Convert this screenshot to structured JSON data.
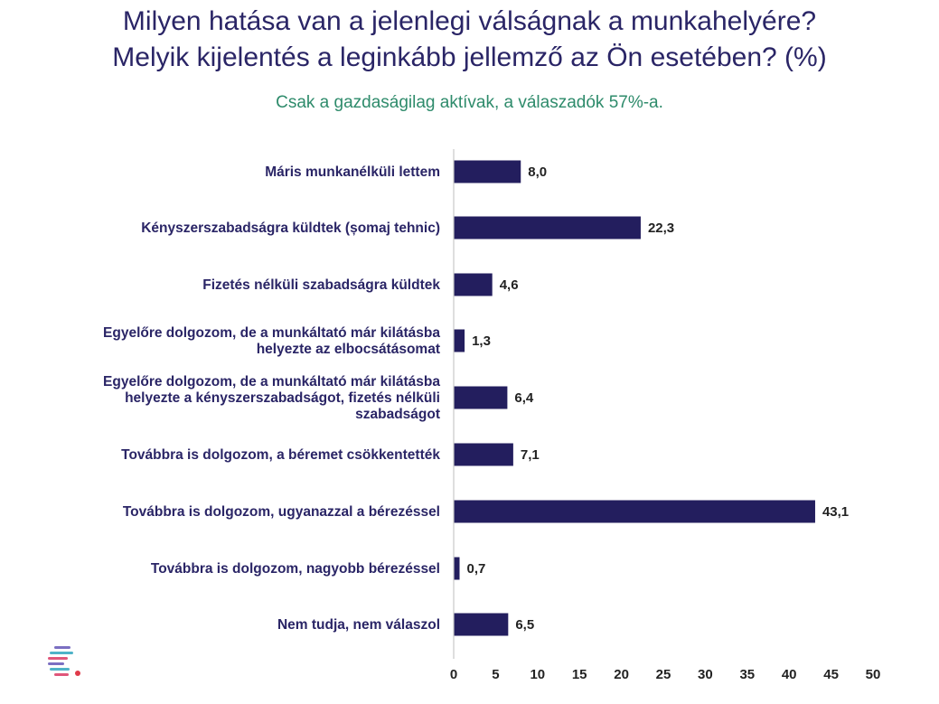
{
  "header": {
    "title_line1": "Milyen hatása van a jelenlegi válságnak a munkahelyére?",
    "title_line2": "Melyik kijelentés a leginkább jellemző az Ön esetében? (%)",
    "subtitle": "Csak a gazdaságilag aktívak, a válaszadók 57%-a."
  },
  "colors": {
    "bar": "#231e5e",
    "title": "#2a2566",
    "subtitle": "#2e8b6b"
  },
  "chart_data": {
    "type": "bar",
    "orientation": "horizontal",
    "title": "Milyen hatása van a jelenlegi válságnak a munkahelyére? Melyik kijelentés a leginkább jellemző az Ön esetében? (%)",
    "subtitle": "Csak a gazdaságilag aktívak, a válaszadók 57%-a.",
    "categories": [
      "Máris munkanélküli lettem",
      "Kényszerszabadságra küldtek (șomaj tehnic)",
      "Fizetés nélküli szabadságra küldtek",
      "Egyelőre dolgozom, de a munkáltató már kilátásba helyezte az elbocsátásomat",
      "Egyelőre dolgozom, de a munkáltató már kilátásba helyezte a kényszerszabadságot, fizetés nélküli szabadságot",
      "Továbbra is dolgozom, a béremet csökkentették",
      "Továbbra is dolgozom, ugyanazzal a bérezéssel",
      "Továbbra is dolgozom, nagyobb bérezéssel",
      "Nem tudja, nem válaszol"
    ],
    "category_lines": [
      [
        "Máris munkanélküli lettem"
      ],
      [
        "Kényszerszabadságra küldtek (șomaj tehnic)"
      ],
      [
        "Fizetés nélküli szabadságra küldtek"
      ],
      [
        "Egyelőre dolgozom, de a munkáltató már kilátásba",
        "helyezte az elbocsátásomat"
      ],
      [
        "Egyelőre dolgozom, de a munkáltató már kilátásba",
        "helyezte a kényszerszabadságot, fizetés nélküli",
        "szabadságot"
      ],
      [
        "Továbbra is dolgozom, a béremet csökkentették"
      ],
      [
        "Továbbra is dolgozom, ugyanazzal a bérezéssel"
      ],
      [
        "Továbbra is dolgozom, nagyobb bérezéssel"
      ],
      [
        "Nem tudja, nem válaszol"
      ]
    ],
    "values": [
      8.0,
      22.3,
      4.6,
      1.3,
      6.4,
      7.1,
      43.1,
      0.7,
      6.5
    ],
    "value_labels": [
      "8,0",
      "22,3",
      "4,6",
      "1,3",
      "6,4",
      "7,1",
      "43,1",
      "0,7",
      "6,5"
    ],
    "xlim": [
      0,
      50
    ],
    "xticks": [
      0,
      5,
      10,
      15,
      20,
      25,
      30,
      35,
      40,
      45,
      50
    ],
    "xlabel": "",
    "ylabel": "",
    "grid": false,
    "legend": "none"
  }
}
